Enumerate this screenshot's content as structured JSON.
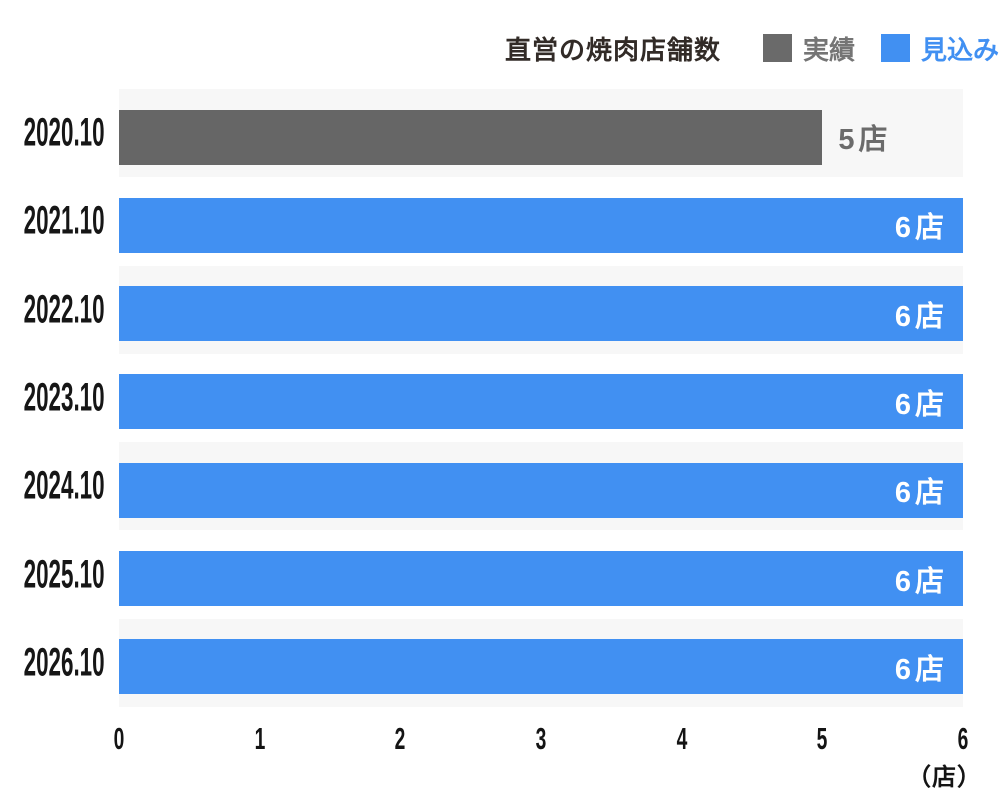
{
  "header": {
    "title": "直営の焼肉店舗数",
    "legend": [
      {
        "label": "実績",
        "color": "#6A6A6A",
        "text_color": "#757575"
      },
      {
        "label": "見込み",
        "color": "#4190F2",
        "text_color": "#4190F2"
      }
    ]
  },
  "chart_data": {
    "type": "bar",
    "orientation": "horizontal",
    "title": "直営の焼肉店舗数",
    "categories": [
      "2020.10",
      "2021.10",
      "2022.10",
      "2023.10",
      "2024.10",
      "2025.10",
      "2026.10"
    ],
    "series": [
      {
        "name": "実績",
        "color": "#666666",
        "values": [
          5,
          null,
          null,
          null,
          null,
          null,
          null
        ]
      },
      {
        "name": "見込み",
        "color": "#4190F2",
        "values": [
          null,
          6,
          6,
          6,
          6,
          6,
          6
        ]
      }
    ],
    "bar_labels": [
      "5店",
      "6店",
      "6店",
      "6店",
      "6店",
      "6店",
      "6店"
    ],
    "x_ticks": [
      0,
      1,
      2,
      3,
      4,
      5,
      6
    ],
    "xlim": [
      0,
      6
    ],
    "xlabel_unit": "（店）",
    "grid": false,
    "legend_position": "top-right",
    "stripe_rows": "odd",
    "stripe_color": "#F7F7F7"
  }
}
